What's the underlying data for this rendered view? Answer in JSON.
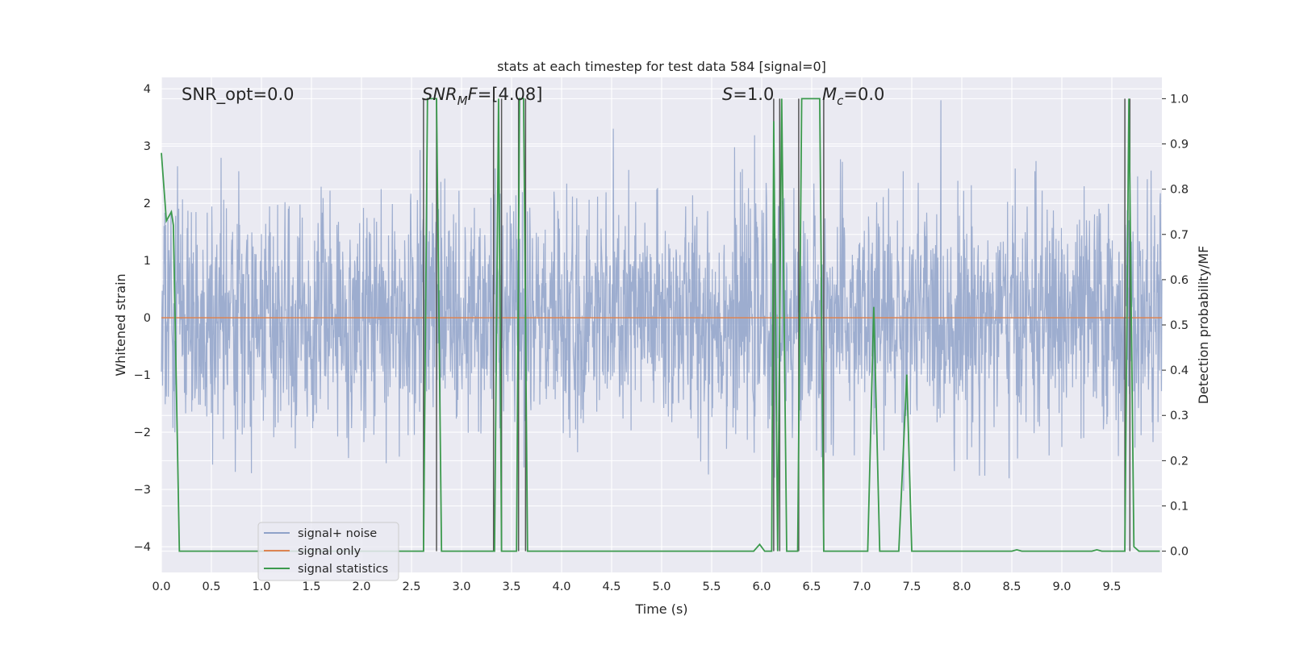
{
  "chart_data": {
    "type": "line",
    "title": "stats at each timestep for test data 584 [signal=0]",
    "xlabel": "Time (s)",
    "ylabel": "Whitened strain",
    "y2label": "Detection probability/MF",
    "xlim": [
      0,
      10
    ],
    "ylim": [
      -4.45,
      4.2
    ],
    "y2lim": [
      -0.047,
      1.047
    ],
    "x_ticks": [
      "0.0",
      "0.5",
      "1.0",
      "1.5",
      "2.0",
      "2.5",
      "3.0",
      "3.5",
      "4.0",
      "4.5",
      "5.0",
      "5.5",
      "6.0",
      "6.5",
      "7.0",
      "7.5",
      "8.0",
      "8.5",
      "9.0",
      "9.5"
    ],
    "y_ticks": [
      "4",
      "3",
      "2",
      "1",
      "0",
      "−1",
      "−2",
      "−3",
      "−4"
    ],
    "y2_ticks": [
      "1.0",
      "0.9",
      "0.8",
      "0.7",
      "0.6",
      "0.5",
      "0.4",
      "0.3",
      "0.2",
      "0.1",
      "0.0"
    ],
    "grid": true,
    "legend_placement": "lower-left",
    "annotations": {
      "snr_opt": "SNR_opt=0.0",
      "snr_mf_sym": "SNR",
      "snr_mf_sub": "M",
      "snr_mf_f": "F",
      "snr_mf_val": "=[4.08]",
      "s_sym": "S",
      "s_val": "=1.0",
      "mc_sym": "M",
      "mc_sub": "c",
      "mc_val": "=0.0"
    },
    "series": [
      {
        "name": "signal+ noise",
        "color": "#8fa2c9",
        "note": "whitened noise, approx. gaussian, amplitude range about -3.7 to 3.8"
      },
      {
        "name": "signal only",
        "color": "#dd8452",
        "values": "constant 0"
      },
      {
        "name": "signal statistics",
        "color": "#3c9a4d",
        "x": [
          0.0,
          0.05,
          0.1,
          0.12,
          0.18,
          0.19,
          2.62,
          2.66,
          2.7,
          2.75,
          2.8,
          3.3,
          3.33,
          3.37,
          3.4,
          3.55,
          3.58,
          3.62,
          3.66,
          5.92,
          5.98,
          6.03,
          6.1,
          6.12,
          6.16,
          6.2,
          6.25,
          6.3,
          6.36,
          6.4,
          6.45,
          6.58,
          6.62,
          6.67,
          7.06,
          7.12,
          7.18,
          7.28,
          7.37,
          7.45,
          7.5,
          8.5,
          8.55,
          8.6,
          9.3,
          9.35,
          9.4,
          9.63,
          9.67,
          9.72,
          9.77,
          9.82,
          9.98
        ],
        "y": [
          0.88,
          0.73,
          0.75,
          0.72,
          0.0,
          0.0,
          0.0,
          1.0,
          1.0,
          1.0,
          0.0,
          0.0,
          0.0,
          1.0,
          0.0,
          0.0,
          1.0,
          1.0,
          0.0,
          0.0,
          0.015,
          0.0,
          0.0,
          0.95,
          0.0,
          1.0,
          0.0,
          0.0,
          0.0,
          1.0,
          1.0,
          1.0,
          0.0,
          0.0,
          0.0,
          0.54,
          0.0,
          0.0,
          0.0,
          0.39,
          0.0,
          0.0,
          0.003,
          0.0,
          0.0,
          0.003,
          0.0,
          0.0,
          1.0,
          0.01,
          0.0,
          0.0,
          0.0
        ]
      }
    ],
    "mf_markers_x": [
      2.62,
      2.75,
      3.32,
      3.4,
      3.57,
      3.64,
      6.12,
      6.18,
      6.37,
      6.62,
      9.63,
      9.68
    ],
    "mf_markers_y": 1.0
  },
  "colors": {
    "plot_bg": "#eaeaf2",
    "grid": "#ffffff",
    "marker_lines": "#555555",
    "text": "#262626"
  }
}
